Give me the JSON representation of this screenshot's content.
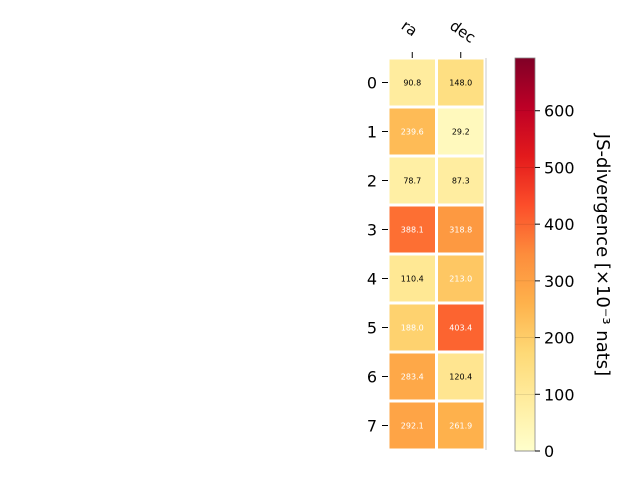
{
  "chart_data": {
    "type": "heatmap",
    "columns": [
      "ra",
      "dec"
    ],
    "rows": [
      "0",
      "1",
      "2",
      "3",
      "4",
      "5",
      "6",
      "7"
    ],
    "values": [
      [
        90.8,
        148.0
      ],
      [
        239.6,
        29.2
      ],
      [
        78.7,
        87.3
      ],
      [
        388.1,
        318.8
      ],
      [
        110.4,
        213.0
      ],
      [
        188.0,
        403.4
      ],
      [
        283.4,
        120.4
      ],
      [
        292.1,
        261.9
      ]
    ],
    "value_labels": [
      [
        "90.8",
        "148.0"
      ],
      [
        "239.6",
        "29.2"
      ],
      [
        "78.7",
        "87.3"
      ],
      [
        "388.1",
        "318.8"
      ],
      [
        "110.4",
        "213.0"
      ],
      [
        "188.0",
        "403.4"
      ],
      [
        "283.4",
        "120.4"
      ],
      [
        "292.1",
        "261.9"
      ]
    ],
    "colorbar": {
      "label": "JS-divergence [×10⁻³ nats]",
      "ticks": [
        0,
        100,
        200,
        300,
        400,
        500,
        600
      ],
      "tick_labels": [
        "0",
        "100",
        "200",
        "300",
        "400",
        "500",
        "600"
      ],
      "range": [
        0,
        693
      ],
      "colormap": "YlOrRd"
    },
    "grid": false
  }
}
